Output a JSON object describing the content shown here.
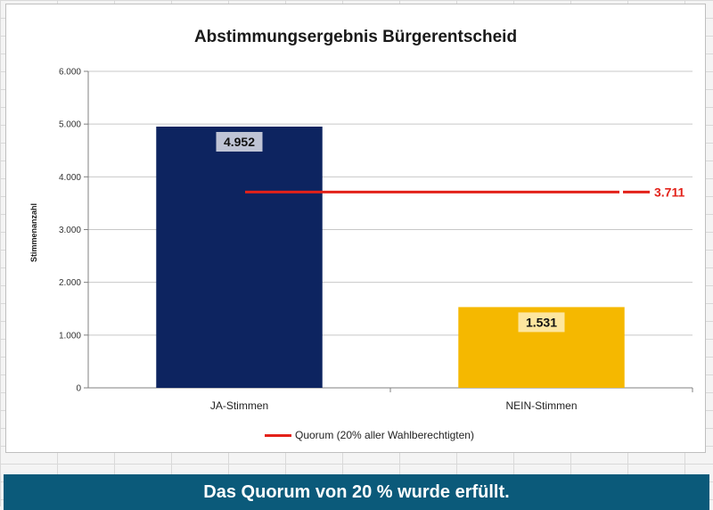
{
  "chart_data": {
    "type": "bar",
    "title": "Abstimmungsergebnis Bürgerentscheid",
    "ylabel": "Stimmenanzahl",
    "xlabel": "",
    "categories": [
      "JA-Stimmen",
      "NEIN-Stimmen"
    ],
    "values": [
      4952,
      1531
    ],
    "value_labels": [
      "4.952",
      "1.531"
    ],
    "ylim": [
      0,
      6000
    ],
    "yticks": [
      0,
      1000,
      2000,
      3000,
      4000,
      5000,
      6000
    ],
    "ytick_labels": [
      "0",
      "1.000",
      "2.000",
      "3.000",
      "4.000",
      "5.000",
      "6.000"
    ],
    "grid": true,
    "colors": [
      "#0d2460",
      "#f5b800"
    ],
    "reference_line": {
      "name": "Quorum (20% aller Wahlberechtigten)",
      "value": 3711,
      "label": "3.711",
      "color": "#e32119"
    },
    "legend_position": "bottom"
  },
  "footer": {
    "text": "Das Quorum von 20 % wurde erfüllt."
  }
}
